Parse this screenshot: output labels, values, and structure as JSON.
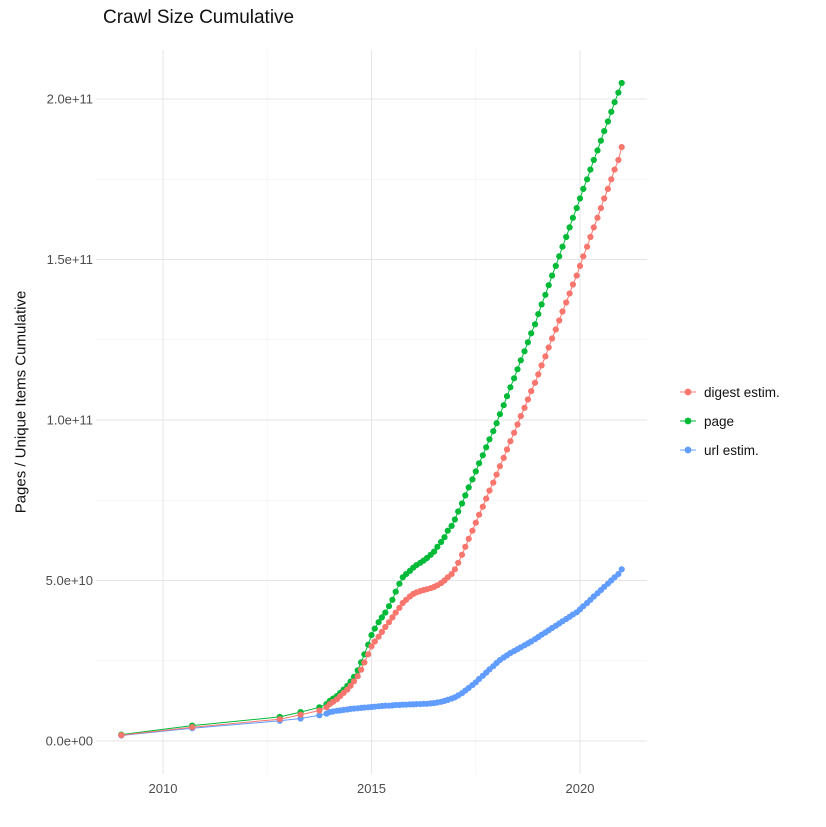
{
  "chart_data": {
    "type": "line",
    "title": "Crawl Size Cumulative",
    "ylabel": "Pages / Unique Items Cumulative",
    "xlabel": "",
    "y_unit": "1e9",
    "xlim": [
      2008.4,
      2021.6
    ],
    "ylim": [
      0,
      215
    ],
    "grid": "on",
    "legend_position": "right",
    "x_ticks": [
      {
        "v": 2010,
        "label": "2010"
      },
      {
        "v": 2015,
        "label": "2015"
      },
      {
        "v": 2020,
        "label": "2020"
      }
    ],
    "y_ticks": [
      {
        "v": 0,
        "label": "0.0e+00"
      },
      {
        "v": 50,
        "label": "5.0e+10"
      },
      {
        "v": 100,
        "label": "1.0e+11"
      },
      {
        "v": 150,
        "label": "1.5e+11"
      },
      {
        "v": 200,
        "label": "2.0e+11"
      }
    ],
    "x_minor": [
      2012.5,
      2017.5
    ],
    "y_minor": [
      25,
      75,
      125,
      175
    ],
    "series": [
      {
        "name": "digest estim.",
        "color": "#F8766D",
        "points": [
          [
            2009.0,
            1.8
          ],
          [
            2010.7,
            4.3
          ],
          [
            2012.8,
            6.8
          ],
          [
            2013.3,
            8.2
          ],
          [
            2013.75,
            9.5
          ],
          [
            2013.92,
            10.5
          ],
          [
            2014.0,
            11.5
          ],
          [
            2014.08,
            12.2
          ],
          [
            2014.17,
            13.0
          ],
          [
            2014.25,
            14.0
          ],
          [
            2014.33,
            15.0
          ],
          [
            2014.42,
            16.0
          ],
          [
            2014.5,
            17.2
          ],
          [
            2014.58,
            18.6
          ],
          [
            2014.67,
            20.2
          ],
          [
            2014.75,
            22.2
          ],
          [
            2014.83,
            24.5
          ],
          [
            2014.92,
            27.0
          ],
          [
            2015.0,
            29.5
          ],
          [
            2015.08,
            31.0
          ],
          [
            2015.17,
            32.5
          ],
          [
            2015.25,
            34.0
          ],
          [
            2015.33,
            35.5
          ],
          [
            2015.42,
            37.0
          ],
          [
            2015.5,
            38.5
          ],
          [
            2015.58,
            40.0
          ],
          [
            2015.67,
            41.5
          ],
          [
            2015.75,
            43.0
          ],
          [
            2015.83,
            44.0
          ],
          [
            2015.92,
            45.0
          ],
          [
            2016.0,
            45.8
          ],
          [
            2016.08,
            46.3
          ],
          [
            2016.17,
            46.7
          ],
          [
            2016.25,
            47.0
          ],
          [
            2016.33,
            47.3
          ],
          [
            2016.42,
            47.6
          ],
          [
            2016.5,
            48.0
          ],
          [
            2016.58,
            48.5
          ],
          [
            2016.67,
            49.2
          ],
          [
            2016.75,
            50.0
          ],
          [
            2016.83,
            51.0
          ],
          [
            2016.92,
            52.0
          ],
          [
            2017.0,
            53.5
          ],
          [
            2017.08,
            55.5
          ],
          [
            2017.17,
            58.0
          ],
          [
            2017.25,
            60.5
          ],
          [
            2017.33,
            63.0
          ],
          [
            2017.42,
            65.5
          ],
          [
            2017.5,
            68.0
          ],
          [
            2017.58,
            70.5
          ],
          [
            2017.67,
            73.0
          ],
          [
            2017.75,
            75.5
          ],
          [
            2017.83,
            78.0
          ],
          [
            2017.92,
            80.5
          ],
          [
            2018.0,
            83.0
          ],
          [
            2018.08,
            85.6
          ],
          [
            2018.17,
            88.2
          ],
          [
            2018.25,
            90.8
          ],
          [
            2018.33,
            93.4
          ],
          [
            2018.42,
            96.0
          ],
          [
            2018.5,
            98.6
          ],
          [
            2018.58,
            101.2
          ],
          [
            2018.67,
            103.8
          ],
          [
            2018.75,
            106.4
          ],
          [
            2018.83,
            109.0
          ],
          [
            2018.92,
            111.6
          ],
          [
            2019.0,
            114.2
          ],
          [
            2019.08,
            117.0
          ],
          [
            2019.17,
            119.8
          ],
          [
            2019.25,
            122.6
          ],
          [
            2019.33,
            125.4
          ],
          [
            2019.42,
            128.2
          ],
          [
            2019.5,
            131.0
          ],
          [
            2019.58,
            133.8
          ],
          [
            2019.67,
            136.6
          ],
          [
            2019.75,
            139.4
          ],
          [
            2019.83,
            142.2
          ],
          [
            2019.92,
            145.0
          ],
          [
            2020.0,
            148.0
          ],
          [
            2020.08,
            151.0
          ],
          [
            2020.17,
            154.0
          ],
          [
            2020.25,
            157.0
          ],
          [
            2020.33,
            160.0
          ],
          [
            2020.42,
            163.0
          ],
          [
            2020.5,
            166.0
          ],
          [
            2020.58,
            169.0
          ],
          [
            2020.67,
            172.0
          ],
          [
            2020.75,
            175.0
          ],
          [
            2020.83,
            178.0
          ],
          [
            2020.92,
            181.0
          ],
          [
            2021.0,
            185.0
          ]
        ]
      },
      {
        "name": "page",
        "color": "#00BA38",
        "points": [
          [
            2009.0,
            2.0
          ],
          [
            2010.7,
            4.8
          ],
          [
            2012.8,
            7.5
          ],
          [
            2013.3,
            9.0
          ],
          [
            2013.75,
            10.5
          ],
          [
            2013.92,
            11.5
          ],
          [
            2014.0,
            12.5
          ],
          [
            2014.08,
            13.2
          ],
          [
            2014.17,
            14.0
          ],
          [
            2014.25,
            15.0
          ],
          [
            2014.33,
            16.0
          ],
          [
            2014.42,
            17.2
          ],
          [
            2014.5,
            18.5
          ],
          [
            2014.58,
            20.0
          ],
          [
            2014.67,
            22.0
          ],
          [
            2014.75,
            24.5
          ],
          [
            2014.83,
            27.0
          ],
          [
            2014.92,
            30.0
          ],
          [
            2015.0,
            33.0
          ],
          [
            2015.08,
            35.0
          ],
          [
            2015.17,
            37.0
          ],
          [
            2015.25,
            38.5
          ],
          [
            2015.33,
            40.0
          ],
          [
            2015.42,
            42.0
          ],
          [
            2015.5,
            44.0
          ],
          [
            2015.58,
            46.5
          ],
          [
            2015.67,
            49.0
          ],
          [
            2015.75,
            51.0
          ],
          [
            2015.83,
            52.0
          ],
          [
            2015.92,
            53.0
          ],
          [
            2016.0,
            54.0
          ],
          [
            2016.08,
            54.8
          ],
          [
            2016.17,
            55.5
          ],
          [
            2016.25,
            56.2
          ],
          [
            2016.33,
            57.0
          ],
          [
            2016.42,
            58.0
          ],
          [
            2016.5,
            59.0
          ],
          [
            2016.58,
            60.5
          ],
          [
            2016.67,
            62.0
          ],
          [
            2016.75,
            63.5
          ],
          [
            2016.83,
            65.5
          ],
          [
            2016.92,
            67.0
          ],
          [
            2017.0,
            69.0
          ],
          [
            2017.08,
            71.5
          ],
          [
            2017.17,
            74.0
          ],
          [
            2017.25,
            76.5
          ],
          [
            2017.33,
            79.0
          ],
          [
            2017.42,
            81.5
          ],
          [
            2017.5,
            84.0
          ],
          [
            2017.58,
            86.5
          ],
          [
            2017.67,
            89.0
          ],
          [
            2017.75,
            91.5
          ],
          [
            2017.83,
            94.0
          ],
          [
            2017.92,
            96.5
          ],
          [
            2018.0,
            99.0
          ],
          [
            2018.08,
            101.8
          ],
          [
            2018.17,
            104.6
          ],
          [
            2018.25,
            107.4
          ],
          [
            2018.33,
            110.2
          ],
          [
            2018.42,
            113.0
          ],
          [
            2018.5,
            115.8
          ],
          [
            2018.58,
            118.6
          ],
          [
            2018.67,
            121.4
          ],
          [
            2018.75,
            124.2
          ],
          [
            2018.83,
            127.0
          ],
          [
            2018.92,
            129.8
          ],
          [
            2019.0,
            133.0
          ],
          [
            2019.08,
            136.0
          ],
          [
            2019.17,
            139.0
          ],
          [
            2019.25,
            142.0
          ],
          [
            2019.33,
            145.0
          ],
          [
            2019.42,
            148.0
          ],
          [
            2019.5,
            151.0
          ],
          [
            2019.58,
            154.0
          ],
          [
            2019.67,
            157.0
          ],
          [
            2019.75,
            160.0
          ],
          [
            2019.83,
            163.0
          ],
          [
            2019.92,
            166.0
          ],
          [
            2020.0,
            169.0
          ],
          [
            2020.08,
            172.0
          ],
          [
            2020.17,
            175.0
          ],
          [
            2020.25,
            178.0
          ],
          [
            2020.33,
            181.0
          ],
          [
            2020.42,
            184.0
          ],
          [
            2020.5,
            187.0
          ],
          [
            2020.58,
            190.0
          ],
          [
            2020.67,
            193.0
          ],
          [
            2020.75,
            196.0
          ],
          [
            2020.83,
            199.0
          ],
          [
            2020.92,
            202.0
          ],
          [
            2021.0,
            205.0
          ]
        ]
      },
      {
        "name": "url estim.",
        "color": "#619CFF",
        "points": [
          [
            2009.0,
            1.7
          ],
          [
            2010.7,
            4.0
          ],
          [
            2012.8,
            6.3
          ],
          [
            2013.3,
            7.0
          ],
          [
            2013.75,
            8.0
          ],
          [
            2013.92,
            8.5
          ],
          [
            2014.0,
            9.0
          ],
          [
            2014.08,
            9.2
          ],
          [
            2014.17,
            9.4
          ],
          [
            2014.25,
            9.5
          ],
          [
            2014.33,
            9.7
          ],
          [
            2014.42,
            9.8
          ],
          [
            2014.5,
            10.0
          ],
          [
            2014.58,
            10.1
          ],
          [
            2014.67,
            10.2
          ],
          [
            2014.75,
            10.3
          ],
          [
            2014.83,
            10.4
          ],
          [
            2014.92,
            10.5
          ],
          [
            2015.0,
            10.6
          ],
          [
            2015.08,
            10.7
          ],
          [
            2015.17,
            10.8
          ],
          [
            2015.25,
            10.9
          ],
          [
            2015.33,
            11.0
          ],
          [
            2015.42,
            11.0
          ],
          [
            2015.5,
            11.1
          ],
          [
            2015.58,
            11.2
          ],
          [
            2015.67,
            11.2
          ],
          [
            2015.75,
            11.3
          ],
          [
            2015.83,
            11.3
          ],
          [
            2015.92,
            11.4
          ],
          [
            2016.0,
            11.4
          ],
          [
            2016.08,
            11.5
          ],
          [
            2016.17,
            11.5
          ],
          [
            2016.25,
            11.6
          ],
          [
            2016.33,
            11.6
          ],
          [
            2016.42,
            11.7
          ],
          [
            2016.5,
            11.8
          ],
          [
            2016.58,
            12.0
          ],
          [
            2016.67,
            12.2
          ],
          [
            2016.75,
            12.5
          ],
          [
            2016.83,
            12.8
          ],
          [
            2016.92,
            13.2
          ],
          [
            2017.0,
            13.6
          ],
          [
            2017.08,
            14.2
          ],
          [
            2017.17,
            14.9
          ],
          [
            2017.25,
            15.7
          ],
          [
            2017.33,
            16.5
          ],
          [
            2017.42,
            17.4
          ],
          [
            2017.5,
            18.3
          ],
          [
            2017.58,
            19.3
          ],
          [
            2017.67,
            20.3
          ],
          [
            2017.75,
            21.3
          ],
          [
            2017.83,
            22.3
          ],
          [
            2017.92,
            23.3
          ],
          [
            2018.0,
            24.3
          ],
          [
            2018.08,
            25.2
          ],
          [
            2018.17,
            26.0
          ],
          [
            2018.25,
            26.7
          ],
          [
            2018.33,
            27.4
          ],
          [
            2018.42,
            28.0
          ],
          [
            2018.5,
            28.6
          ],
          [
            2018.58,
            29.2
          ],
          [
            2018.67,
            29.8
          ],
          [
            2018.75,
            30.4
          ],
          [
            2018.83,
            31.0
          ],
          [
            2018.92,
            31.7
          ],
          [
            2019.0,
            32.4
          ],
          [
            2019.08,
            33.1
          ],
          [
            2019.17,
            33.8
          ],
          [
            2019.25,
            34.5
          ],
          [
            2019.33,
            35.2
          ],
          [
            2019.42,
            35.9
          ],
          [
            2019.5,
            36.6
          ],
          [
            2019.58,
            37.3
          ],
          [
            2019.67,
            38.0
          ],
          [
            2019.75,
            38.7
          ],
          [
            2019.83,
            39.4
          ],
          [
            2019.92,
            40.1
          ],
          [
            2020.0,
            41.0
          ],
          [
            2020.08,
            42.0
          ],
          [
            2020.17,
            43.0
          ],
          [
            2020.25,
            44.0
          ],
          [
            2020.33,
            45.0
          ],
          [
            2020.42,
            46.0
          ],
          [
            2020.5,
            47.0
          ],
          [
            2020.58,
            48.0
          ],
          [
            2020.67,
            49.0
          ],
          [
            2020.75,
            50.0
          ],
          [
            2020.83,
            51.0
          ],
          [
            2020.92,
            52.0
          ],
          [
            2021.0,
            53.5
          ]
        ]
      }
    ]
  }
}
